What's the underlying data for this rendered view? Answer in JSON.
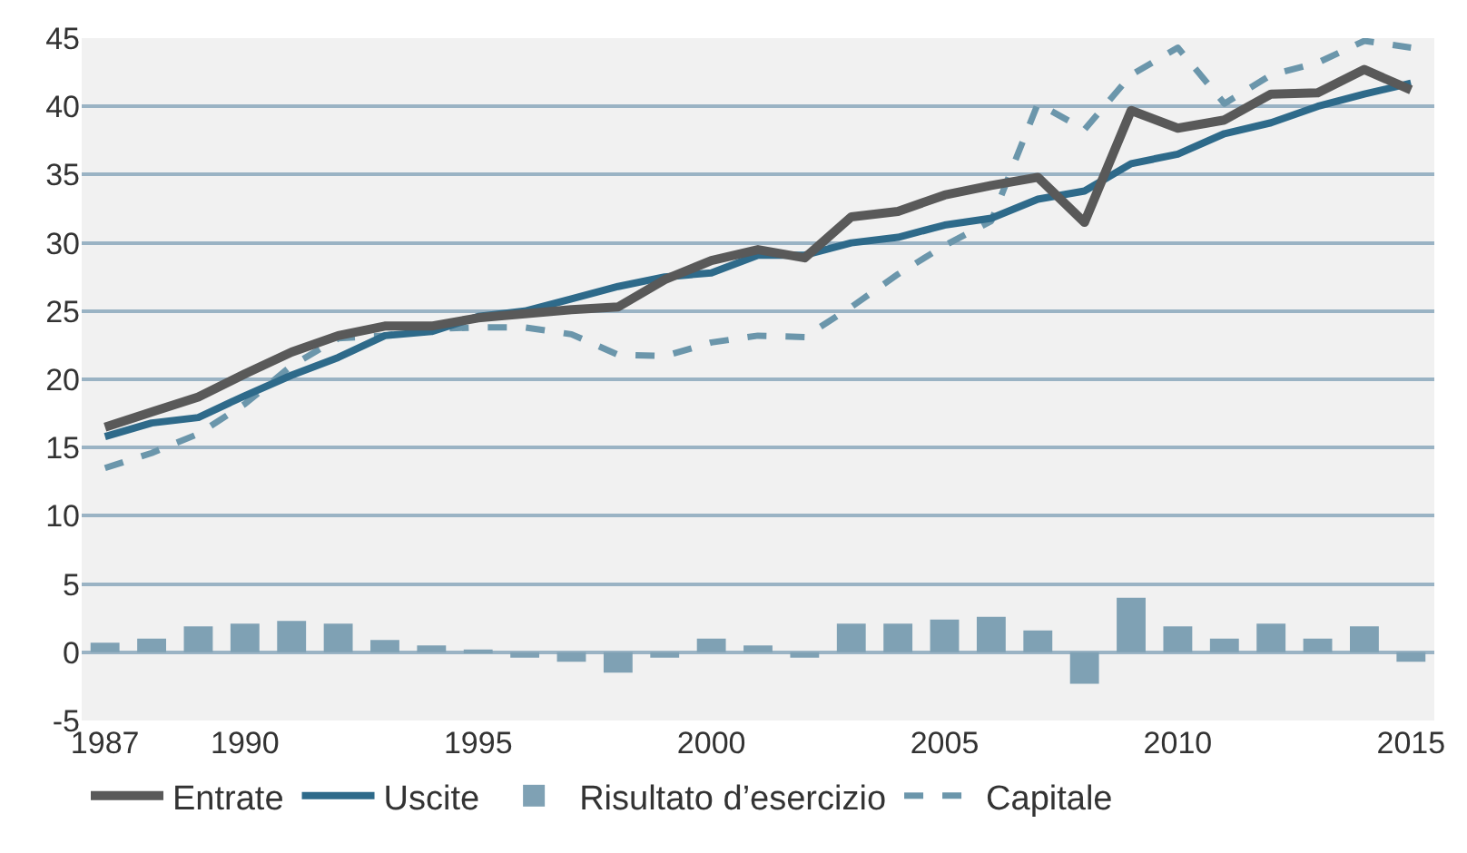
{
  "chart_data": {
    "type": "line",
    "x": [
      1987,
      1988,
      1989,
      1990,
      1991,
      1992,
      1993,
      1994,
      1995,
      1996,
      1997,
      1998,
      1999,
      2000,
      2001,
      2002,
      2003,
      2004,
      2005,
      2006,
      2007,
      2008,
      2009,
      2010,
      2011,
      2012,
      2013,
      2014,
      2015
    ],
    "series": [
      {
        "name": "Entrate",
        "line_style": "solid",
        "color": "#595959",
        "values": [
          16.5,
          17.6,
          18.7,
          20.4,
          22.0,
          23.2,
          23.9,
          23.9,
          24.5,
          24.8,
          25.1,
          25.3,
          27.3,
          28.7,
          29.5,
          28.9,
          31.9,
          32.3,
          33.5,
          34.2,
          34.8,
          31.5,
          39.7,
          38.4,
          39.0,
          40.9,
          41.0,
          42.7,
          41.2
        ]
      },
      {
        "name": "Uscite",
        "line_style": "solid",
        "color": "#2e6a8a",
        "values": [
          15.8,
          16.8,
          17.2,
          18.8,
          20.3,
          21.6,
          23.2,
          23.5,
          24.6,
          25.0,
          25.9,
          26.8,
          27.5,
          27.8,
          29.1,
          29.1,
          30.0,
          30.4,
          31.3,
          31.8,
          33.2,
          33.8,
          35.8,
          36.5,
          38.0,
          38.8,
          40.0,
          40.9,
          41.7
        ]
      },
      {
        "name": "Risultato d’esercizio",
        "type": "bar",
        "color": "#7fa1b4",
        "values": [
          0.7,
          1.0,
          1.9,
          2.1,
          2.3,
          2.1,
          0.9,
          0.5,
          0.2,
          -0.4,
          -0.7,
          -1.5,
          -0.4,
          1.0,
          0.5,
          -0.4,
          2.1,
          2.1,
          2.4,
          2.6,
          1.6,
          -2.3,
          4.0,
          1.9,
          1.0,
          2.1,
          1.0,
          1.9,
          -0.7
        ]
      },
      {
        "name": "Capitale",
        "line_style": "dashed",
        "color": "#6b96ab",
        "values": [
          13.5,
          14.6,
          16.0,
          18.2,
          21.0,
          23.0,
          23.2,
          23.7,
          23.8,
          23.8,
          23.3,
          21.8,
          21.7,
          22.7,
          23.2,
          23.1,
          25.3,
          27.7,
          29.8,
          31.6,
          40.2,
          38.3,
          42.3,
          44.3,
          40.2,
          42.3,
          43.2,
          44.8,
          44.3
        ]
      }
    ],
    "xlim": [
      1986.5,
      2015.5
    ],
    "xticks": [
      1987,
      1990,
      1995,
      2000,
      2005,
      2010,
      2015
    ],
    "ylim": [
      -5,
      45
    ],
    "yticks": [
      -5,
      0,
      5,
      10,
      15,
      20,
      25,
      30,
      35,
      40,
      45
    ],
    "grid": "y",
    "legend": "bottom",
    "marker": "none"
  }
}
